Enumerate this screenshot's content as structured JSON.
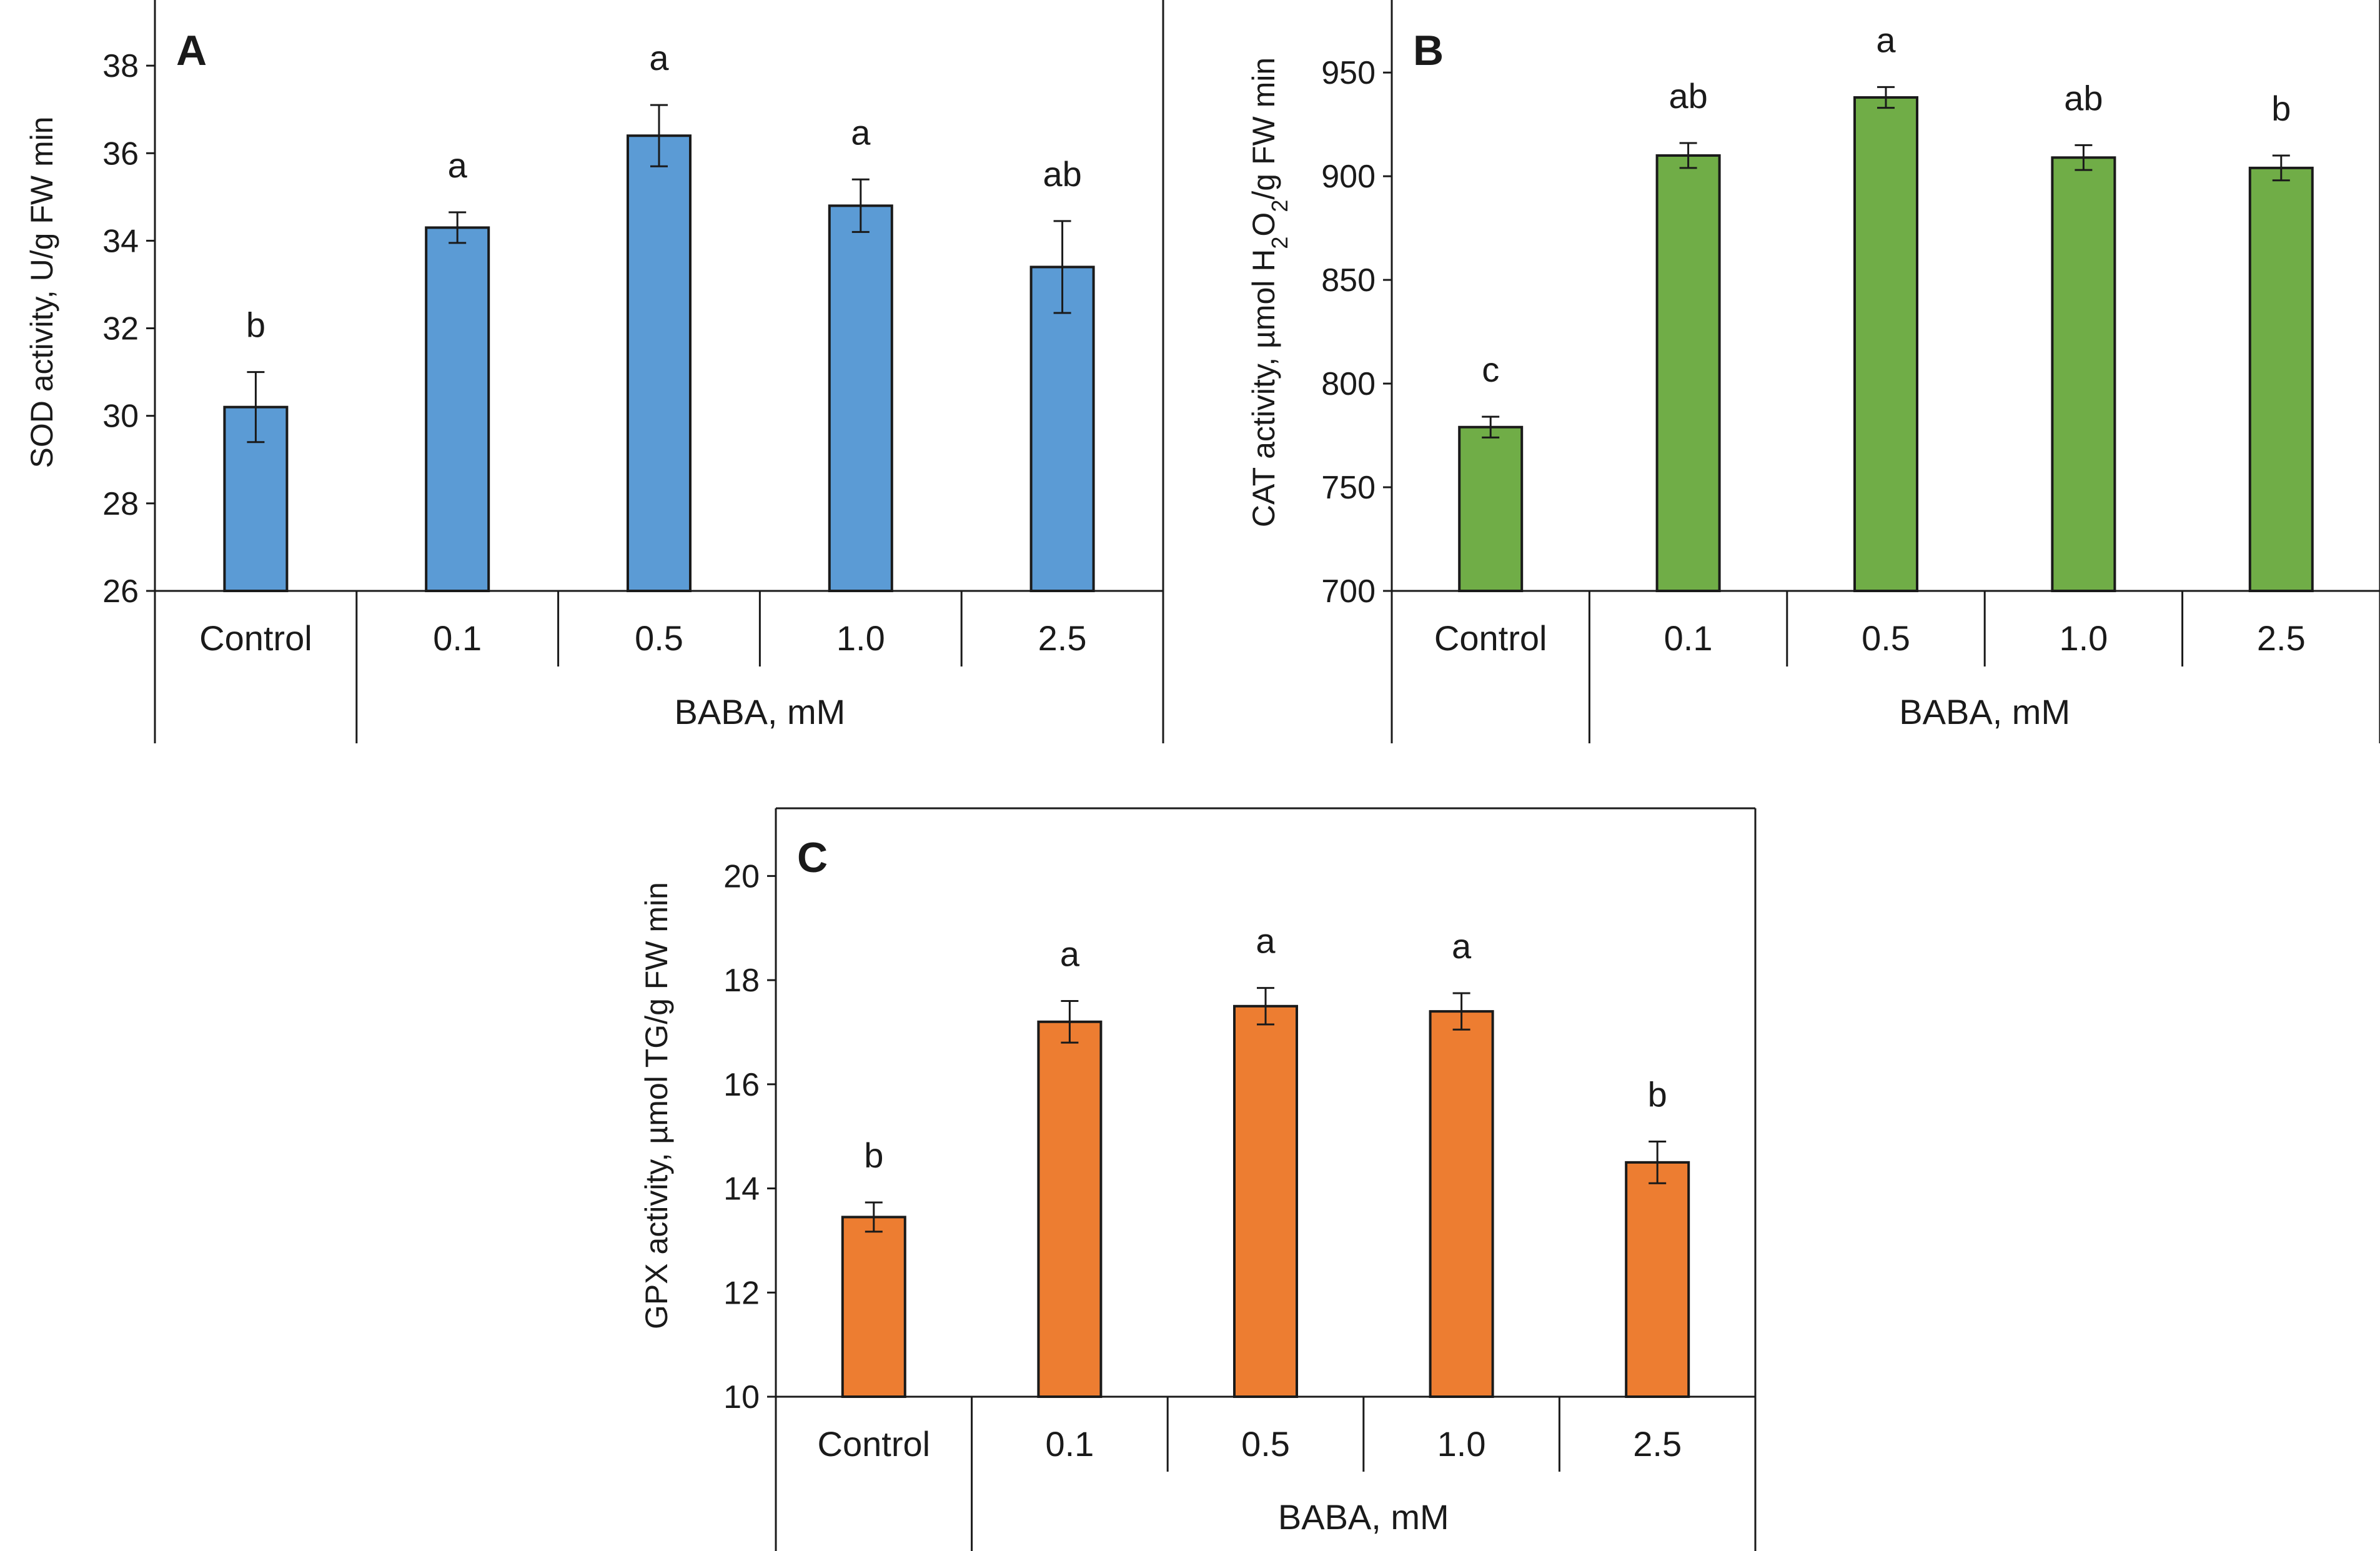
{
  "chart_data": [
    {
      "type": "bar",
      "panel": "A",
      "ylabel": "SOD activity, U/g FW min",
      "ylabel_parts": [
        {
          "t": "SOD activity, U/g FW min",
          "sub": false
        }
      ],
      "xlabel": "BABA, mM",
      "categories": [
        "Control",
        "0.1",
        "0.5",
        "1.0",
        "2.5"
      ],
      "values": [
        30.2,
        34.3,
        36.4,
        34.8,
        33.4
      ],
      "errors": [
        0.8,
        0.35,
        0.7,
        0.6,
        1.05
      ],
      "significance": [
        "b",
        "a",
        "a",
        "a",
        "ab"
      ],
      "ylim": [
        26,
        39.5
      ],
      "yticks": [
        26,
        28,
        30,
        32,
        34,
        36,
        38
      ],
      "color": "#5b9bd5"
    },
    {
      "type": "bar",
      "panel": "B",
      "ylabel": "CAT activity, µmol H2O2/g FW min",
      "ylabel_parts": [
        {
          "t": "CAT activity, µmol H",
          "sub": false
        },
        {
          "t": "2",
          "sub": true
        },
        {
          "t": "O",
          "sub": false
        },
        {
          "t": "2",
          "sub": true
        },
        {
          "t": "/g FW min",
          "sub": false
        }
      ],
      "xlabel": "BABA, mM",
      "categories": [
        "Control",
        "0.1",
        "0.5",
        "1.0",
        "2.5"
      ],
      "values": [
        779,
        910,
        938,
        909,
        904
      ],
      "errors": [
        5,
        6,
        5,
        6,
        6
      ],
      "significance": [
        "c",
        "ab",
        "a",
        "ab",
        "b"
      ],
      "ylim": [
        700,
        985
      ],
      "yticks": [
        700,
        750,
        800,
        850,
        900,
        950
      ],
      "color": "#70ad47"
    },
    {
      "type": "bar",
      "panel": "C",
      "ylabel": "GPX activity, µmol TG/g FW min",
      "ylabel_parts": [
        {
          "t": "GPX activity, µmol TG/g FW min",
          "sub": false
        }
      ],
      "xlabel": "BABA, mM",
      "categories": [
        "Control",
        "0.1",
        "0.5",
        "1.0",
        "2.5"
      ],
      "values": [
        13.45,
        17.2,
        17.5,
        17.4,
        14.5
      ],
      "errors": [
        0.28,
        0.4,
        0.35,
        0.35,
        0.4
      ],
      "significance": [
        "b",
        "a",
        "a",
        "a",
        "b"
      ],
      "ylim": [
        10,
        21.3
      ],
      "yticks": [
        10,
        12,
        14,
        16,
        18,
        20
      ],
      "color": "#ed7d31"
    }
  ]
}
